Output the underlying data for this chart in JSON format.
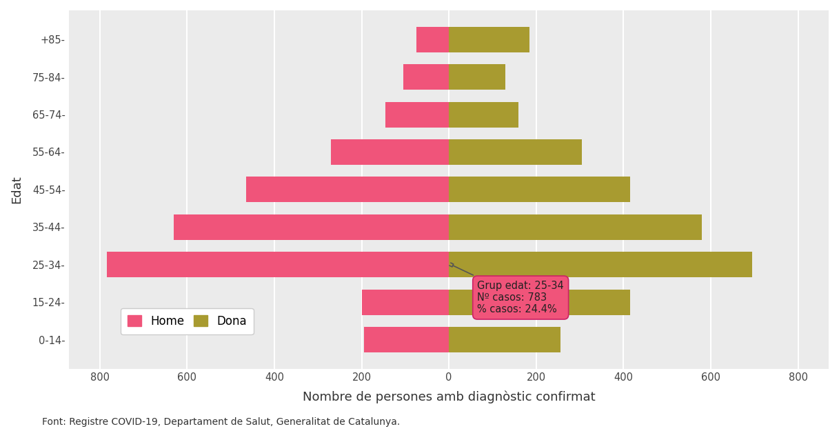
{
  "age_groups": [
    "0-14",
    "15-24",
    "25-34",
    "35-44",
    "45-54",
    "55-64",
    "65-74",
    "75-84",
    "+85"
  ],
  "home_values": [
    195,
    200,
    783,
    630,
    465,
    270,
    145,
    105,
    75
  ],
  "dona_values": [
    255,
    415,
    695,
    580,
    415,
    305,
    160,
    130,
    185
  ],
  "home_color": "#F0547A",
  "dona_color": "#A89B30",
  "bg_color": "#EBEBEB",
  "grid_color": "#FFFFFF",
  "xlabel": "Nombre de persones amb diagnòstic confirmat",
  "ylabel": "Edat",
  "xlim": [
    -870,
    870
  ],
  "xticks": [
    -800,
    -600,
    -400,
    -200,
    0,
    200,
    400,
    600,
    800
  ],
  "xtick_labels": [
    "800",
    "600",
    "400",
    "200",
    "0",
    "200",
    "400",
    "600",
    "800"
  ],
  "ytick_labels": [
    "0-14-",
    "15-24-",
    "25-34-",
    "35-44-",
    "45-54-",
    "55-64-",
    "65-74-",
    "75-84-",
    "+85-"
  ],
  "source": "Font: Registre COVID-19, Departament de Salut, Generalitat de Catalunya.",
  "tooltip_age": "25-34",
  "tooltip_casos": "783",
  "tooltip_pct": "24.4%",
  "bar_height": 0.68,
  "legend_labels": [
    "Home",
    "Dona"
  ]
}
